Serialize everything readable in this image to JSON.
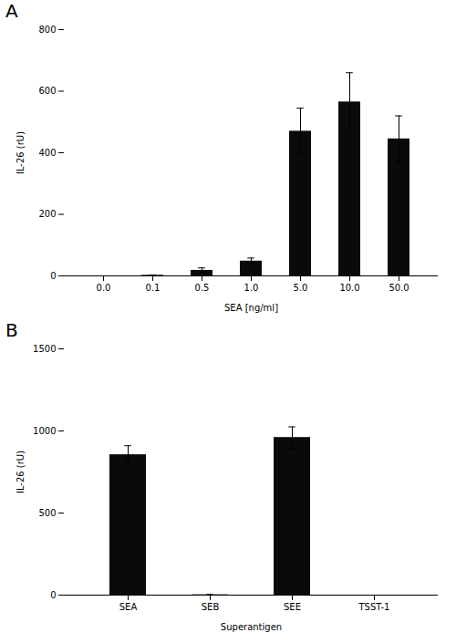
{
  "chart_data": [
    {
      "type": "bar",
      "title": "A",
      "categories": [
        "0.0",
        "0.1",
        "0.5",
        "1.0",
        "5.0",
        "10.0",
        "50.0"
      ],
      "values": [
        0,
        2,
        18,
        48,
        470,
        565,
        445
      ],
      "errors": [
        0,
        1,
        8,
        10,
        75,
        95,
        75
      ],
      "xlabel": "SEA [ng/ml]",
      "ylabel": "IL-26 (rU)",
      "ylim": [
        0,
        800
      ],
      "yticks": [
        0,
        200,
        400,
        600,
        800
      ],
      "color": "#0a0a0a"
    },
    {
      "type": "bar",
      "title": "B",
      "categories": [
        "SEA",
        "SEB",
        "SEE",
        "TSST-1"
      ],
      "values": [
        855,
        2,
        960,
        0
      ],
      "errors": [
        55,
        2,
        65,
        0
      ],
      "xlabel": "Superantigen",
      "ylabel": "IL-26 (rU)",
      "ylim": [
        0,
        1500
      ],
      "yticks": [
        0,
        500,
        1000,
        1500
      ],
      "color": "#0a0a0a"
    }
  ]
}
